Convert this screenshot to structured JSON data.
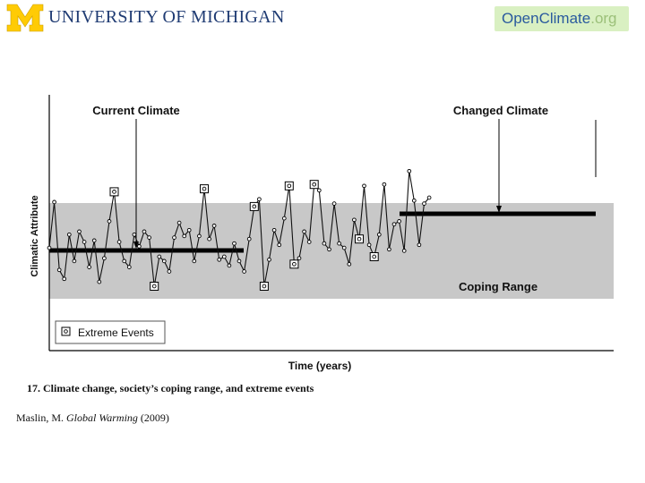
{
  "header": {
    "university": "UNIVERSITY OF MICHIGAN",
    "site_open": "Open",
    "site_climate": "Climate",
    "site_org": ".org",
    "colors": {
      "maize": "#ffcb05",
      "blue": "#1f3b73",
      "badge": "#d9f0c2"
    }
  },
  "figure": {
    "caption": "17. Climate change, society’s coping range, and extreme events",
    "citation_author": "Maslin, M. ",
    "citation_book": "Global Warming",
    "citation_year": " (2009)"
  },
  "chart_data": {
    "type": "line",
    "xlabel": "Time (years)",
    "ylabel": "Climatic Attribute",
    "annotations": [
      "Current Climate",
      "Changed Climate",
      "Coping Range"
    ],
    "legend": {
      "label": "Extreme Events",
      "position": "bottom-left"
    },
    "ylim": [
      0,
      100
    ],
    "xlim": [
      0,
      100
    ],
    "coping_range": [
      23,
      74
    ],
    "current_climate_mean": 43,
    "changed_climate_mean": 62,
    "series": [
      {
        "values": [
          [
            0,
            46
          ],
          [
            1.8,
            77
          ],
          [
            3.6,
            31
          ],
          [
            5.4,
            25
          ],
          [
            7.2,
            55
          ],
          [
            9,
            37
          ],
          [
            10.8,
            57
          ],
          [
            12.6,
            50
          ],
          [
            14.4,
            33
          ],
          [
            16.2,
            51
          ],
          [
            18,
            23
          ],
          [
            19.8,
            39
          ],
          [
            21.6,
            64
          ],
          [
            23.4,
            84
          ],
          [
            25.2,
            50
          ],
          [
            27,
            37
          ],
          [
            28.8,
            33
          ],
          [
            30.6,
            55
          ],
          [
            32.4,
            47
          ],
          [
            34.2,
            57
          ],
          [
            36,
            53
          ],
          [
            37.8,
            20
          ],
          [
            39.6,
            40
          ],
          [
            41.4,
            37
          ],
          [
            43.2,
            30
          ],
          [
            45,
            53
          ],
          [
            46.8,
            63
          ],
          [
            48.6,
            54
          ],
          [
            50.4,
            58
          ],
          [
            52.2,
            37
          ],
          [
            54,
            54
          ],
          [
            55.8,
            86
          ],
          [
            57.6,
            52
          ],
          [
            59.4,
            61
          ],
          [
            61.2,
            38
          ],
          [
            63,
            40
          ],
          [
            64.8,
            34
          ],
          [
            66.6,
            49
          ],
          [
            68.4,
            37
          ],
          [
            70.2,
            30
          ],
          [
            72,
            52
          ],
          [
            73.8,
            74
          ],
          [
            75.6,
            79
          ],
          [
            77.4,
            20
          ],
          [
            79.2,
            38
          ],
          [
            81,
            58
          ],
          [
            82.8,
            48
          ],
          [
            84.6,
            66
          ],
          [
            86.4,
            88
          ],
          [
            88.2,
            35
          ],
          [
            90,
            39
          ],
          [
            91.8,
            57
          ],
          [
            93.6,
            50
          ],
          [
            95.4,
            89
          ],
          [
            97.2,
            85
          ],
          [
            99,
            49
          ]
        ]
      },
      {
        "values": [
          [
            100.8,
            45
          ],
          [
            102.6,
            76
          ],
          [
            104.4,
            49
          ],
          [
            106.2,
            46
          ],
          [
            108,
            35
          ],
          [
            109.8,
            65
          ],
          [
            111.6,
            52
          ],
          [
            113.4,
            88
          ],
          [
            115.2,
            48
          ],
          [
            117,
            40
          ],
          [
            118.8,
            55
          ],
          [
            120.6,
            89
          ],
          [
            122.4,
            45
          ],
          [
            124.2,
            62
          ],
          [
            126,
            64
          ],
          [
            127.8,
            44
          ],
          [
            129.6,
            98
          ],
          [
            131.4,
            78
          ],
          [
            133.2,
            48
          ],
          [
            135,
            76
          ],
          [
            136.8,
            80
          ]
        ]
      }
    ],
    "extreme_event_indices": [
      13,
      21,
      31,
      41,
      43,
      48,
      49,
      53,
      62,
      65
    ]
  }
}
